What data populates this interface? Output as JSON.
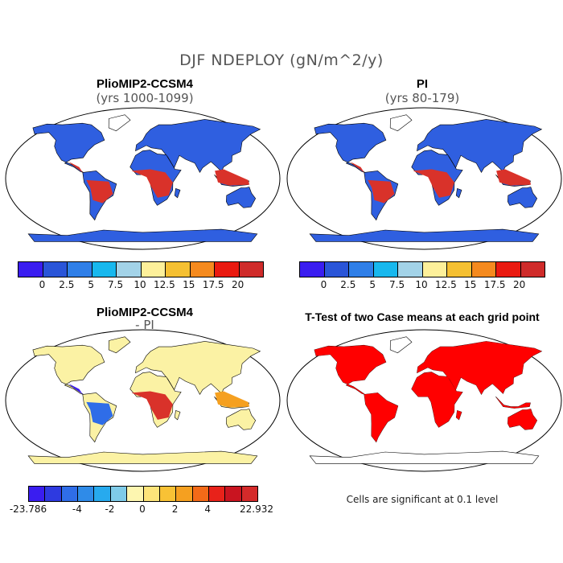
{
  "title": "DJF NDEPLOY (gN/m^2/y)",
  "panels": {
    "top_left": {
      "title": "PlioMIP2-CCSM4",
      "subtitle": "(yrs 1000-1099)"
    },
    "top_right": {
      "title": "PI",
      "subtitle": "(yrs 80-179)"
    },
    "bottom_left": {
      "title": "PlioMIP2-CCSM4",
      "subtitle": "- PI"
    },
    "bottom_right": {
      "title": "T-Test of two Case means at each grid point",
      "note": "Cells are significant at 0.1 level"
    }
  },
  "colorbar_abs": {
    "colors": [
      "#3a1df0",
      "#2a55d8",
      "#2f7fe8",
      "#18b8ee",
      "#a3d3e8",
      "#fdf09a",
      "#f5c032",
      "#f58a1e",
      "#ea1a10",
      "#cf2b2a"
    ],
    "labels": [
      "0",
      "2.5",
      "5",
      "7.5",
      "10",
      "12.5",
      "15",
      "17.5",
      "20"
    ]
  },
  "colorbar_diff": {
    "colors": [
      "#3a1df0",
      "#2e3ae0",
      "#2f6de8",
      "#2f8be8",
      "#27aaee",
      "#7fcbe8",
      "#fdf6b0",
      "#fde47a",
      "#f8c235",
      "#f5a020",
      "#f36a18",
      "#e8221a",
      "#c91420",
      "#d42a2a"
    ],
    "labels": [
      "-23.786",
      "-4",
      "-2",
      "0",
      "2",
      "4",
      "22.932"
    ]
  },
  "map_colors": {
    "ocean": "#ffffff",
    "land_low": "#2f5fe0",
    "land_tropics": "#d9322a",
    "diff_base": "#fbf2a4",
    "signif": "#ff0000",
    "outline": "#000000"
  }
}
